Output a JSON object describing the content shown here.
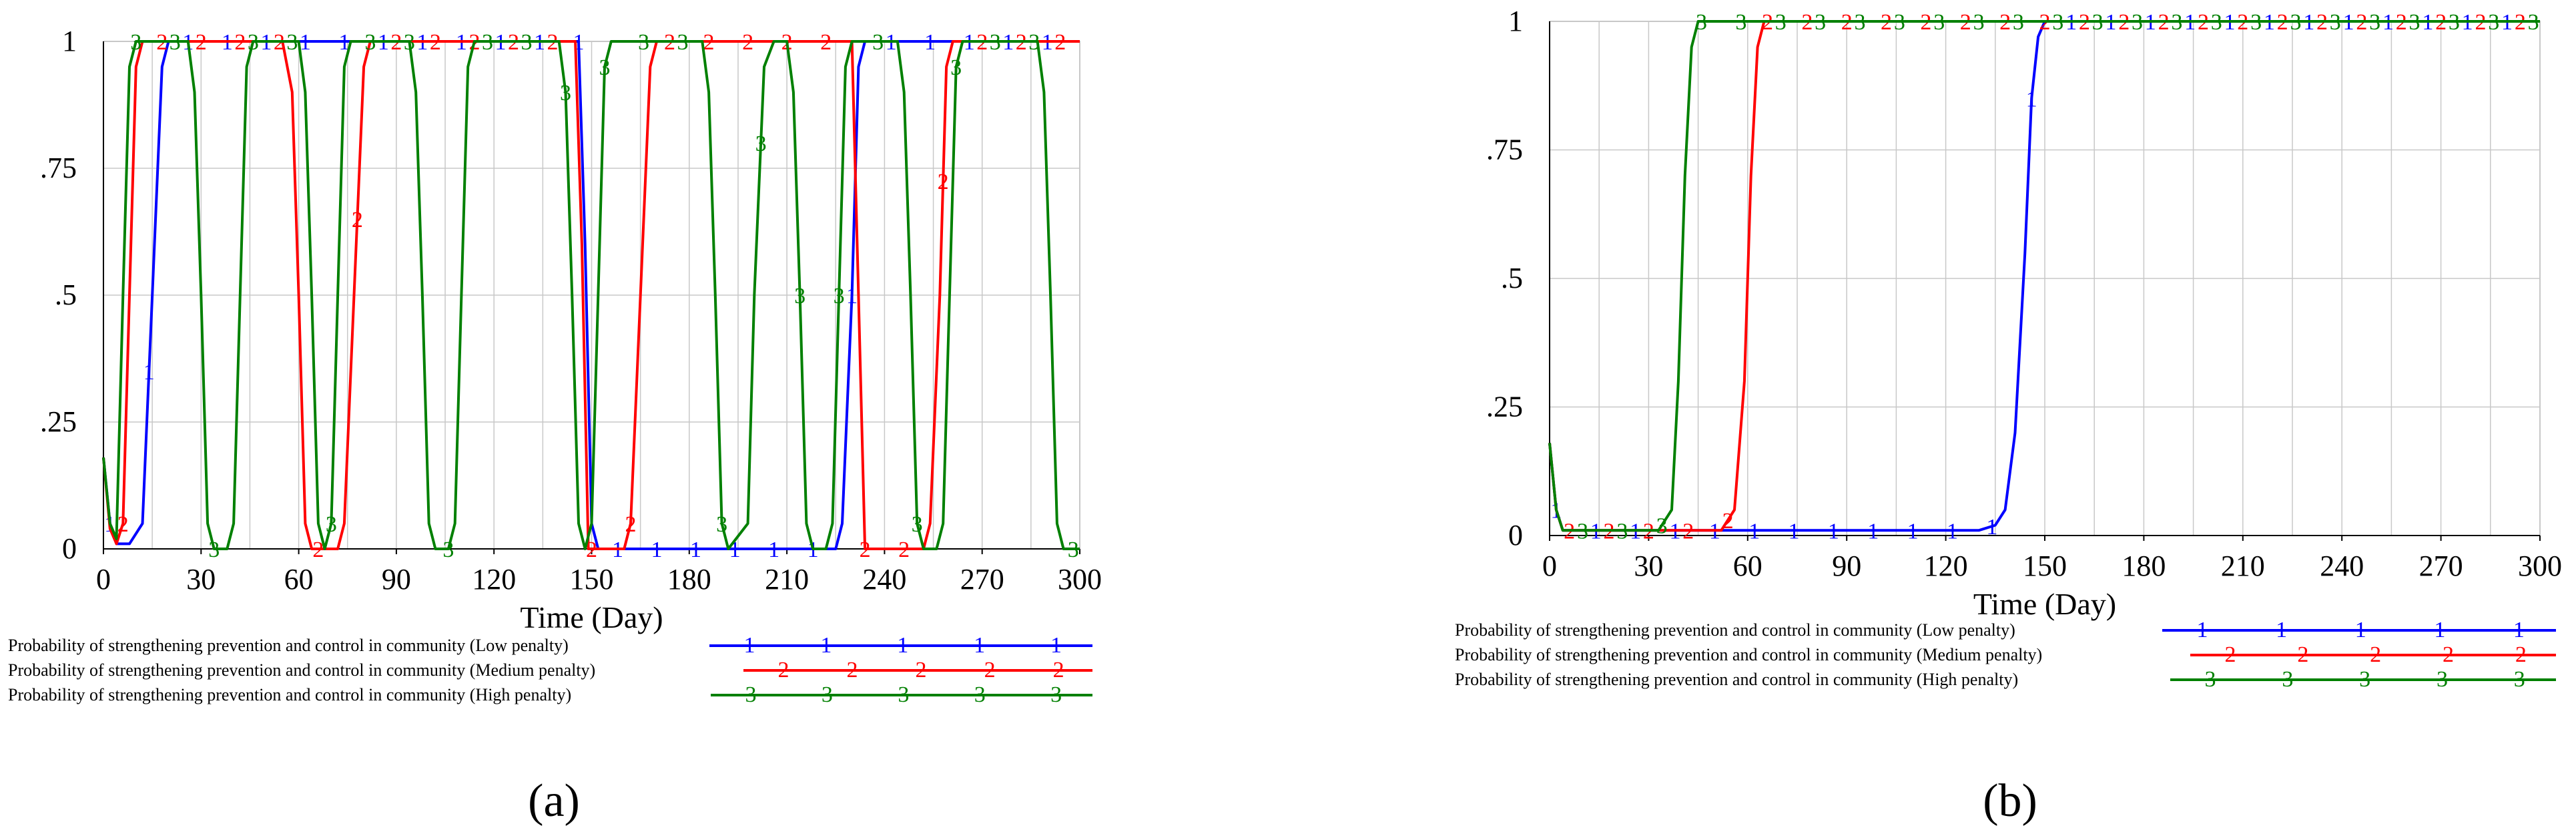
{
  "colors": {
    "s1": "#0000ff",
    "s2": "#ff0000",
    "s3": "#008000",
    "grid": "#c8c8c8",
    "axis": "#000000"
  },
  "chart_data": [
    {
      "type": "line",
      "panel_label": "(a)",
      "xlabel": "Time (Day)",
      "ylabel": "",
      "xlim": [
        0,
        300
      ],
      "ylim": [
        0,
        1
      ],
      "xticks": [
        "0",
        "30",
        "60",
        "90",
        "120",
        "150",
        "180",
        "210",
        "240",
        "270",
        "300"
      ],
      "yticks": [
        "0",
        ".25",
        ".5",
        ".75",
        "1"
      ],
      "grid": true,
      "legend_placement": "below",
      "series": [
        {
          "name": "Probability of strengthening prevention and control in community (Low penalty)",
          "marker": "1",
          "points": [
            [
              0,
              0.18
            ],
            [
              2,
              0.05
            ],
            [
              4,
              0.01
            ],
            [
              8,
              0.01
            ],
            [
              12,
              0.05
            ],
            [
              15,
              0.5
            ],
            [
              18,
              0.95
            ],
            [
              20,
              1
            ],
            [
              146,
              1
            ],
            [
              148,
              0.6
            ],
            [
              150,
              0.05
            ],
            [
              152,
              0
            ],
            [
              225,
              0
            ],
            [
              227,
              0.05
            ],
            [
              230,
              0.5
            ],
            [
              232,
              0.95
            ],
            [
              234,
              1
            ],
            [
              300,
              1
            ]
          ]
        },
        {
          "name": "Probability of strengthening prevention and control in community (Medium penalty)",
          "marker": "2",
          "points": [
            [
              0,
              0.18
            ],
            [
              2,
              0.04
            ],
            [
              4,
              0.01
            ],
            [
              6,
              0.05
            ],
            [
              8,
              0.5
            ],
            [
              10,
              0.95
            ],
            [
              12,
              1
            ],
            [
              55,
              1
            ],
            [
              58,
              0.9
            ],
            [
              60,
              0.5
            ],
            [
              62,
              0.05
            ],
            [
              64,
              0
            ],
            [
              72,
              0
            ],
            [
              74,
              0.05
            ],
            [
              77,
              0.5
            ],
            [
              80,
              0.95
            ],
            [
              82,
              1
            ],
            [
              145,
              1
            ],
            [
              147,
              0.6
            ],
            [
              149,
              0
            ],
            [
              160,
              0
            ],
            [
              162,
              0.05
            ],
            [
              165,
              0.5
            ],
            [
              168,
              0.95
            ],
            [
              170,
              1
            ],
            [
              230,
              1
            ],
            [
              232,
              0.5
            ],
            [
              234,
              0
            ],
            [
              252,
              0
            ],
            [
              254,
              0.05
            ],
            [
              257,
              0.5
            ],
            [
              259,
              0.95
            ],
            [
              261,
              1
            ],
            [
              300,
              1
            ]
          ]
        },
        {
          "name": "Probability of strengthening prevention and control in community (High penalty)",
          "marker": "3",
          "points": [
            [
              0,
              0.18
            ],
            [
              2,
              0.05
            ],
            [
              4,
              0.02
            ],
            [
              6,
              0.5
            ],
            [
              8,
              0.95
            ],
            [
              10,
              1
            ],
            [
              26,
              1
            ],
            [
              28,
              0.9
            ],
            [
              30,
              0.5
            ],
            [
              32,
              0.05
            ],
            [
              34,
              0
            ],
            [
              38,
              0
            ],
            [
              40,
              0.05
            ],
            [
              42,
              0.5
            ],
            [
              44,
              0.95
            ],
            [
              46,
              1
            ],
            [
              60,
              1
            ],
            [
              62,
              0.9
            ],
            [
              64,
              0.5
            ],
            [
              66,
              0.05
            ],
            [
              68,
              0
            ],
            [
              70,
              0.05
            ],
            [
              72,
              0.5
            ],
            [
              74,
              0.95
            ],
            [
              76,
              1
            ],
            [
              94,
              1
            ],
            [
              96,
              0.9
            ],
            [
              98,
              0.5
            ],
            [
              100,
              0.05
            ],
            [
              102,
              0
            ],
            [
              106,
              0
            ],
            [
              108,
              0.05
            ],
            [
              110,
              0.5
            ],
            [
              112,
              0.95
            ],
            [
              114,
              1
            ],
            [
              140,
              1
            ],
            [
              142,
              0.9
            ],
            [
              144,
              0.5
            ],
            [
              146,
              0.05
            ],
            [
              148,
              0
            ],
            [
              150,
              0.05
            ],
            [
              152,
              0.5
            ],
            [
              154,
              0.95
            ],
            [
              156,
              1
            ],
            [
              184,
              1
            ],
            [
              186,
              0.9
            ],
            [
              188,
              0.5
            ],
            [
              190,
              0.05
            ],
            [
              192,
              0
            ],
            [
              198,
              0.05
            ],
            [
              200,
              0.5
            ],
            [
              203,
              0.95
            ],
            [
              206,
              1
            ],
            [
              210,
              1
            ],
            [
              212,
              0.9
            ],
            [
              214,
              0.5
            ],
            [
              216,
              0.05
            ],
            [
              218,
              0
            ],
            [
              222,
              0
            ],
            [
              224,
              0.05
            ],
            [
              226,
              0.5
            ],
            [
              228,
              0.95
            ],
            [
              230,
              1
            ],
            [
              244,
              1
            ],
            [
              246,
              0.9
            ],
            [
              248,
              0.5
            ],
            [
              250,
              0.05
            ],
            [
              252,
              0
            ],
            [
              256,
              0
            ],
            [
              258,
              0.05
            ],
            [
              260,
              0.5
            ],
            [
              262,
              0.95
            ],
            [
              264,
              1
            ],
            [
              287,
              1
            ],
            [
              289,
              0.9
            ],
            [
              291,
              0.5
            ],
            [
              293,
              0.05
            ],
            [
              295,
              0
            ],
            [
              300,
              0
            ]
          ]
        }
      ]
    },
    {
      "type": "line",
      "panel_label": "(b)",
      "xlabel": "Time (Day)",
      "ylabel": "",
      "xlim": [
        0,
        300
      ],
      "ylim": [
        0,
        1
      ],
      "xticks": [
        "0",
        "30",
        "60",
        "90",
        "120",
        "150",
        "180",
        "210",
        "240",
        "270",
        "300"
      ],
      "yticks": [
        "0",
        ".25",
        ".5",
        ".75",
        "1"
      ],
      "grid": true,
      "legend_placement": "below",
      "series": [
        {
          "name": "Probability of strengthening prevention and control in community (Low penalty)",
          "marker": "1",
          "points": [
            [
              0,
              0.18
            ],
            [
              2,
              0.05
            ],
            [
              4,
              0.01
            ],
            [
              130,
              0.01
            ],
            [
              135,
              0.02
            ],
            [
              138,
              0.05
            ],
            [
              141,
              0.2
            ],
            [
              144,
              0.55
            ],
            [
              146,
              0.85
            ],
            [
              148,
              0.97
            ],
            [
              150,
              1
            ],
            [
              300,
              1
            ]
          ]
        },
        {
          "name": "Probability of strengthening prevention and control in community (Medium penalty)",
          "marker": "2",
          "points": [
            [
              0,
              0.18
            ],
            [
              2,
              0.05
            ],
            [
              4,
              0.01
            ],
            [
              52,
              0.01
            ],
            [
              56,
              0.05
            ],
            [
              59,
              0.3
            ],
            [
              61,
              0.7
            ],
            [
              63,
              0.95
            ],
            [
              65,
              1
            ],
            [
              300,
              1
            ]
          ]
        },
        {
          "name": "Probability of strengthening prevention and control in community (High penalty)",
          "marker": "3",
          "points": [
            [
              0,
              0.18
            ],
            [
              2,
              0.05
            ],
            [
              4,
              0.01
            ],
            [
              33,
              0.01
            ],
            [
              37,
              0.05
            ],
            [
              39,
              0.3
            ],
            [
              41,
              0.7
            ],
            [
              43,
              0.95
            ],
            [
              45,
              1
            ],
            [
              300,
              1
            ]
          ]
        }
      ]
    }
  ]
}
